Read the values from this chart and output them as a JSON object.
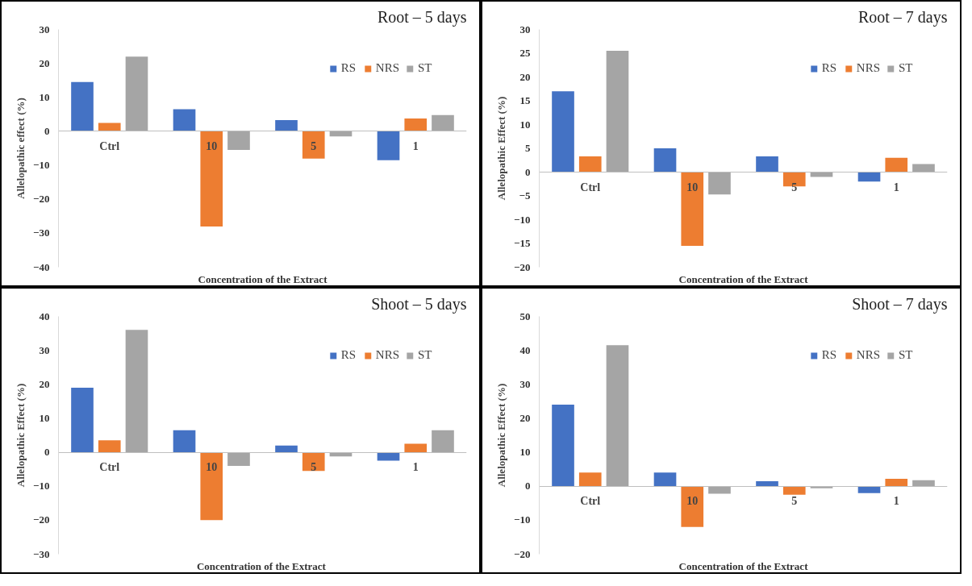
{
  "chart_data": [
    {
      "type": "bar",
      "title": "Root – 5 days",
      "xlabel": "Concentration of the Extract",
      "ylabel": "Allelopathic effect (%)",
      "categories": [
        "Ctrl",
        "10",
        "5",
        "1"
      ],
      "ylim": [
        -40,
        30
      ],
      "yticks": [
        -40,
        -30,
        -20,
        -10,
        0,
        10,
        20,
        30
      ],
      "grid": false,
      "legend": "top right",
      "series": [
        {
          "name": "RS",
          "color": "#4472c4",
          "values": [
            14.5,
            6.5,
            3.3,
            -8.5
          ]
        },
        {
          "name": "NRS",
          "color": "#ed7d31",
          "values": [
            2.5,
            -28,
            -8,
            3.8
          ]
        },
        {
          "name": "ST",
          "color": "#a5a5a5",
          "values": [
            22,
            -5.5,
            -1.5,
            4.8
          ]
        }
      ]
    },
    {
      "type": "bar",
      "title": "Root – 7 days",
      "xlabel": "Concentration of the Extract",
      "ylabel": "Allelopathic Effect (%)",
      "categories": [
        "Ctrl",
        "10",
        "5",
        "1"
      ],
      "ylim": [
        -20,
        30
      ],
      "yticks": [
        -20,
        -15,
        -10,
        -5,
        0,
        5,
        10,
        15,
        20,
        25,
        30
      ],
      "grid": false,
      "legend": "top right",
      "series": [
        {
          "name": "RS",
          "color": "#4472c4",
          "values": [
            17,
            5,
            3.3,
            -2
          ]
        },
        {
          "name": "NRS",
          "color": "#ed7d31",
          "values": [
            3.3,
            -15.5,
            -3,
            3
          ]
        },
        {
          "name": "ST",
          "color": "#a5a5a5",
          "values": [
            25.5,
            -4.7,
            -1,
            1.7
          ]
        }
      ]
    },
    {
      "type": "bar",
      "title": "Shoot – 5 days",
      "xlabel": "Concentration of  the Extract",
      "ylabel": "Allelopathic Effect (%)",
      "categories": [
        "Ctrl",
        "10",
        "5",
        "1"
      ],
      "ylim": [
        -30,
        40
      ],
      "yticks": [
        -30,
        -20,
        -10,
        0,
        10,
        20,
        30,
        40
      ],
      "grid": false,
      "legend": "top right",
      "series": [
        {
          "name": "RS",
          "color": "#4472c4",
          "values": [
            19,
            6.5,
            2,
            -2.5
          ]
        },
        {
          "name": "NRS",
          "color": "#ed7d31",
          "values": [
            3.5,
            -20,
            -5.5,
            2.5
          ]
        },
        {
          "name": "ST",
          "color": "#a5a5a5",
          "values": [
            36,
            -4,
            -1.2,
            6.5
          ]
        }
      ]
    },
    {
      "type": "bar",
      "title": "Shoot – 7 days",
      "xlabel": "Concentration of the Extract",
      "ylabel": "Allelopathic Effect (%)",
      "categories": [
        "Ctrl",
        "10",
        "5",
        "1"
      ],
      "ylim": [
        -20,
        50
      ],
      "yticks": [
        -20,
        -10,
        0,
        10,
        20,
        30,
        40,
        50
      ],
      "grid": false,
      "legend": "top right",
      "series": [
        {
          "name": "RS",
          "color": "#4472c4",
          "values": [
            24,
            4,
            1.5,
            -2
          ]
        },
        {
          "name": "NRS",
          "color": "#ed7d31",
          "values": [
            4,
            -12,
            -2.5,
            2.2
          ]
        },
        {
          "name": "ST",
          "color": "#a5a5a5",
          "values": [
            41.5,
            -2.2,
            -0.6,
            1.8
          ]
        }
      ]
    }
  ]
}
